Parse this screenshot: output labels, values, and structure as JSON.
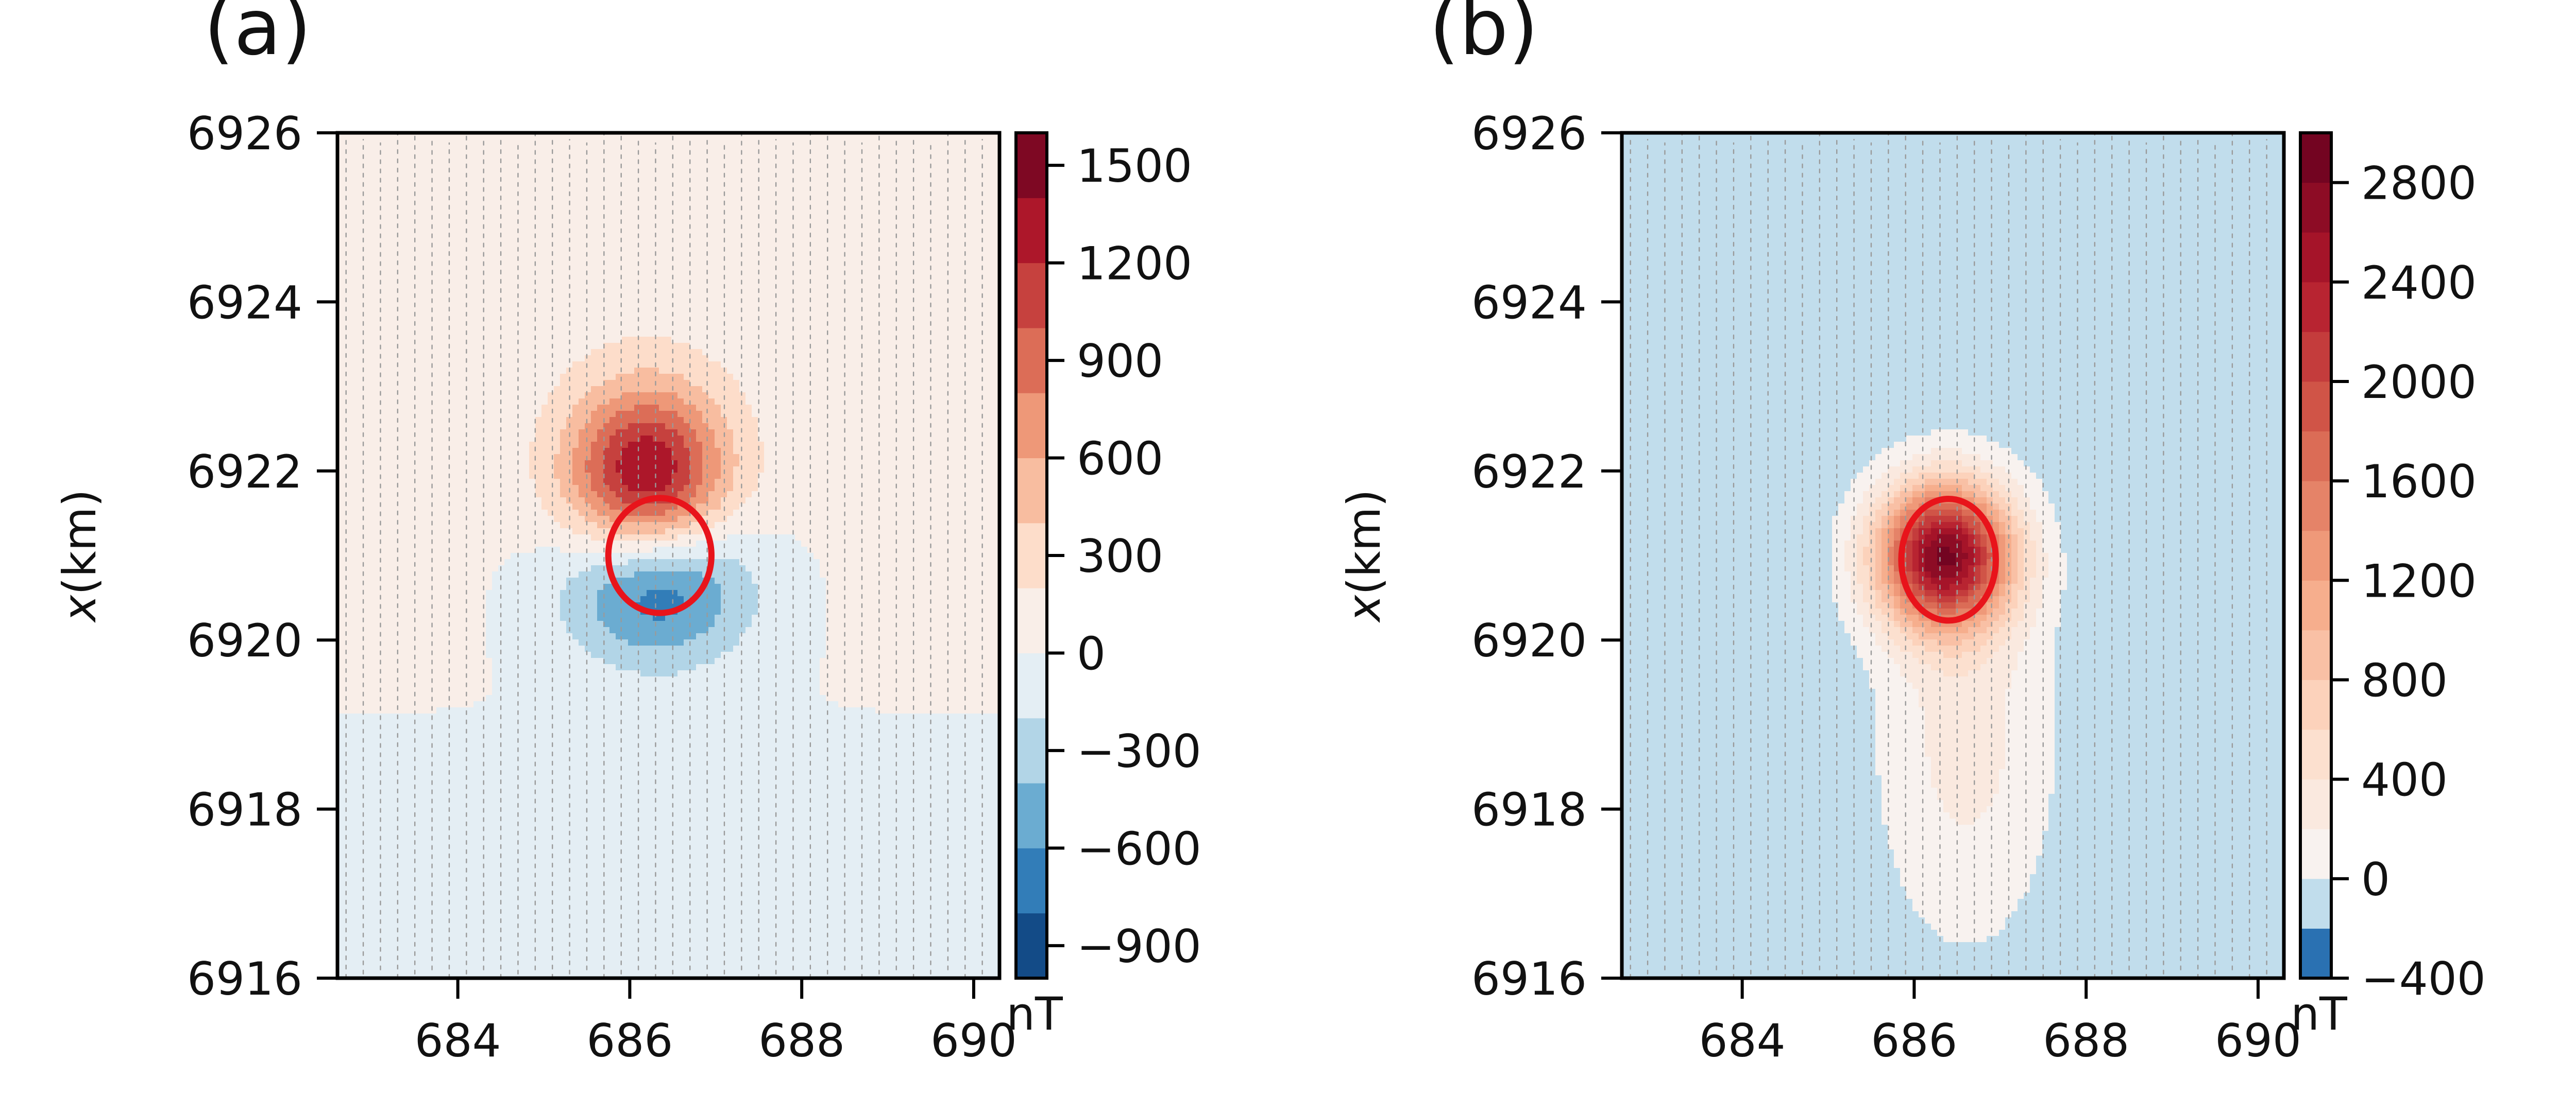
{
  "figure": {
    "background": "#ffffff"
  },
  "chart_data": [
    {
      "type": "heatmap",
      "panel_label": "(a)",
      "ylabel_var": "x",
      "ylabel_unit": "(km)",
      "xlim": [
        682.6,
        690.3
      ],
      "ylim": [
        6916,
        6926
      ],
      "xticks": [
        684,
        686,
        688,
        690
      ],
      "yticks": [
        6916,
        6918,
        6920,
        6922,
        6924,
        6926
      ],
      "colorbar": {
        "label": "nT",
        "min": -1000,
        "max": 1600,
        "ticks": [
          1500,
          1200,
          900,
          600,
          300,
          0,
          -300,
          -600,
          -900
        ],
        "tick_labels": [
          "1500",
          "1200",
          "900",
          "600",
          "300",
          "0",
          "−300",
          "−600",
          "−900"
        ],
        "levels": [
          -1000,
          -800,
          -600,
          -400,
          -200,
          0,
          200,
          400,
          600,
          800,
          1000,
          1200,
          1400,
          1600
        ],
        "colormap": "RdBu_r"
      },
      "anomaly_sources": [
        {
          "x": 686.2,
          "y": 6921.9,
          "peak": 1450,
          "sx": 0.65,
          "sy": 0.75
        },
        {
          "x": 686.3,
          "y": 6920.7,
          "peak": -950,
          "sx": 0.75,
          "sy": 0.65
        }
      ],
      "regional_trend": {
        "base": 0,
        "north_value": 130,
        "south_value": -60
      },
      "target_outline": {
        "cx": 686.35,
        "cy": 6921.0,
        "rx": 0.6,
        "ry": 0.68,
        "color": "#e8141b"
      },
      "survey_lines": {
        "x_start": 682.7,
        "x_end": 690.1,
        "spacing": 0.2,
        "color": "#9a9a9a"
      }
    },
    {
      "type": "heatmap",
      "panel_label": "(b)",
      "ylabel_var": "x",
      "ylabel_unit": "(km)",
      "xlim": [
        682.6,
        690.3
      ],
      "ylim": [
        6916,
        6926
      ],
      "xticks": [
        684,
        686,
        688,
        690
      ],
      "yticks": [
        6916,
        6918,
        6920,
        6922,
        6924,
        6926
      ],
      "colorbar": {
        "label": "nT",
        "min": -400,
        "max": 3000,
        "ticks": [
          2800,
          2400,
          2000,
          1600,
          1200,
          800,
          400,
          0,
          -400
        ],
        "tick_labels": [
          "2800",
          "2400",
          "2000",
          "1600",
          "1200",
          "800",
          "400",
          "0",
          "−400"
        ],
        "levels": [
          -400,
          -200,
          0,
          200,
          400,
          600,
          800,
          1000,
          1200,
          1400,
          1600,
          1800,
          2000,
          2200,
          2400,
          2600,
          2800,
          3000
        ],
        "colormap": "RdBu_r"
      },
      "anomaly_sources": [
        {
          "x": 686.35,
          "y": 6921.0,
          "peak": 2850,
          "sx": 0.55,
          "sy": 0.6
        },
        {
          "x": 686.6,
          "y": 6918.9,
          "peak": 420,
          "sx": 0.7,
          "sy": 1.6
        }
      ],
      "regional_trend": {
        "base": -80,
        "north_value": -120,
        "south_value": -40
      },
      "target_outline": {
        "cx": 686.4,
        "cy": 6920.95,
        "rx": 0.55,
        "ry": 0.72,
        "color": "#e8141b"
      },
      "survey_lines": {
        "x_start": 682.7,
        "x_end": 690.1,
        "spacing": 0.2,
        "color": "#9a9a9a"
      }
    }
  ]
}
